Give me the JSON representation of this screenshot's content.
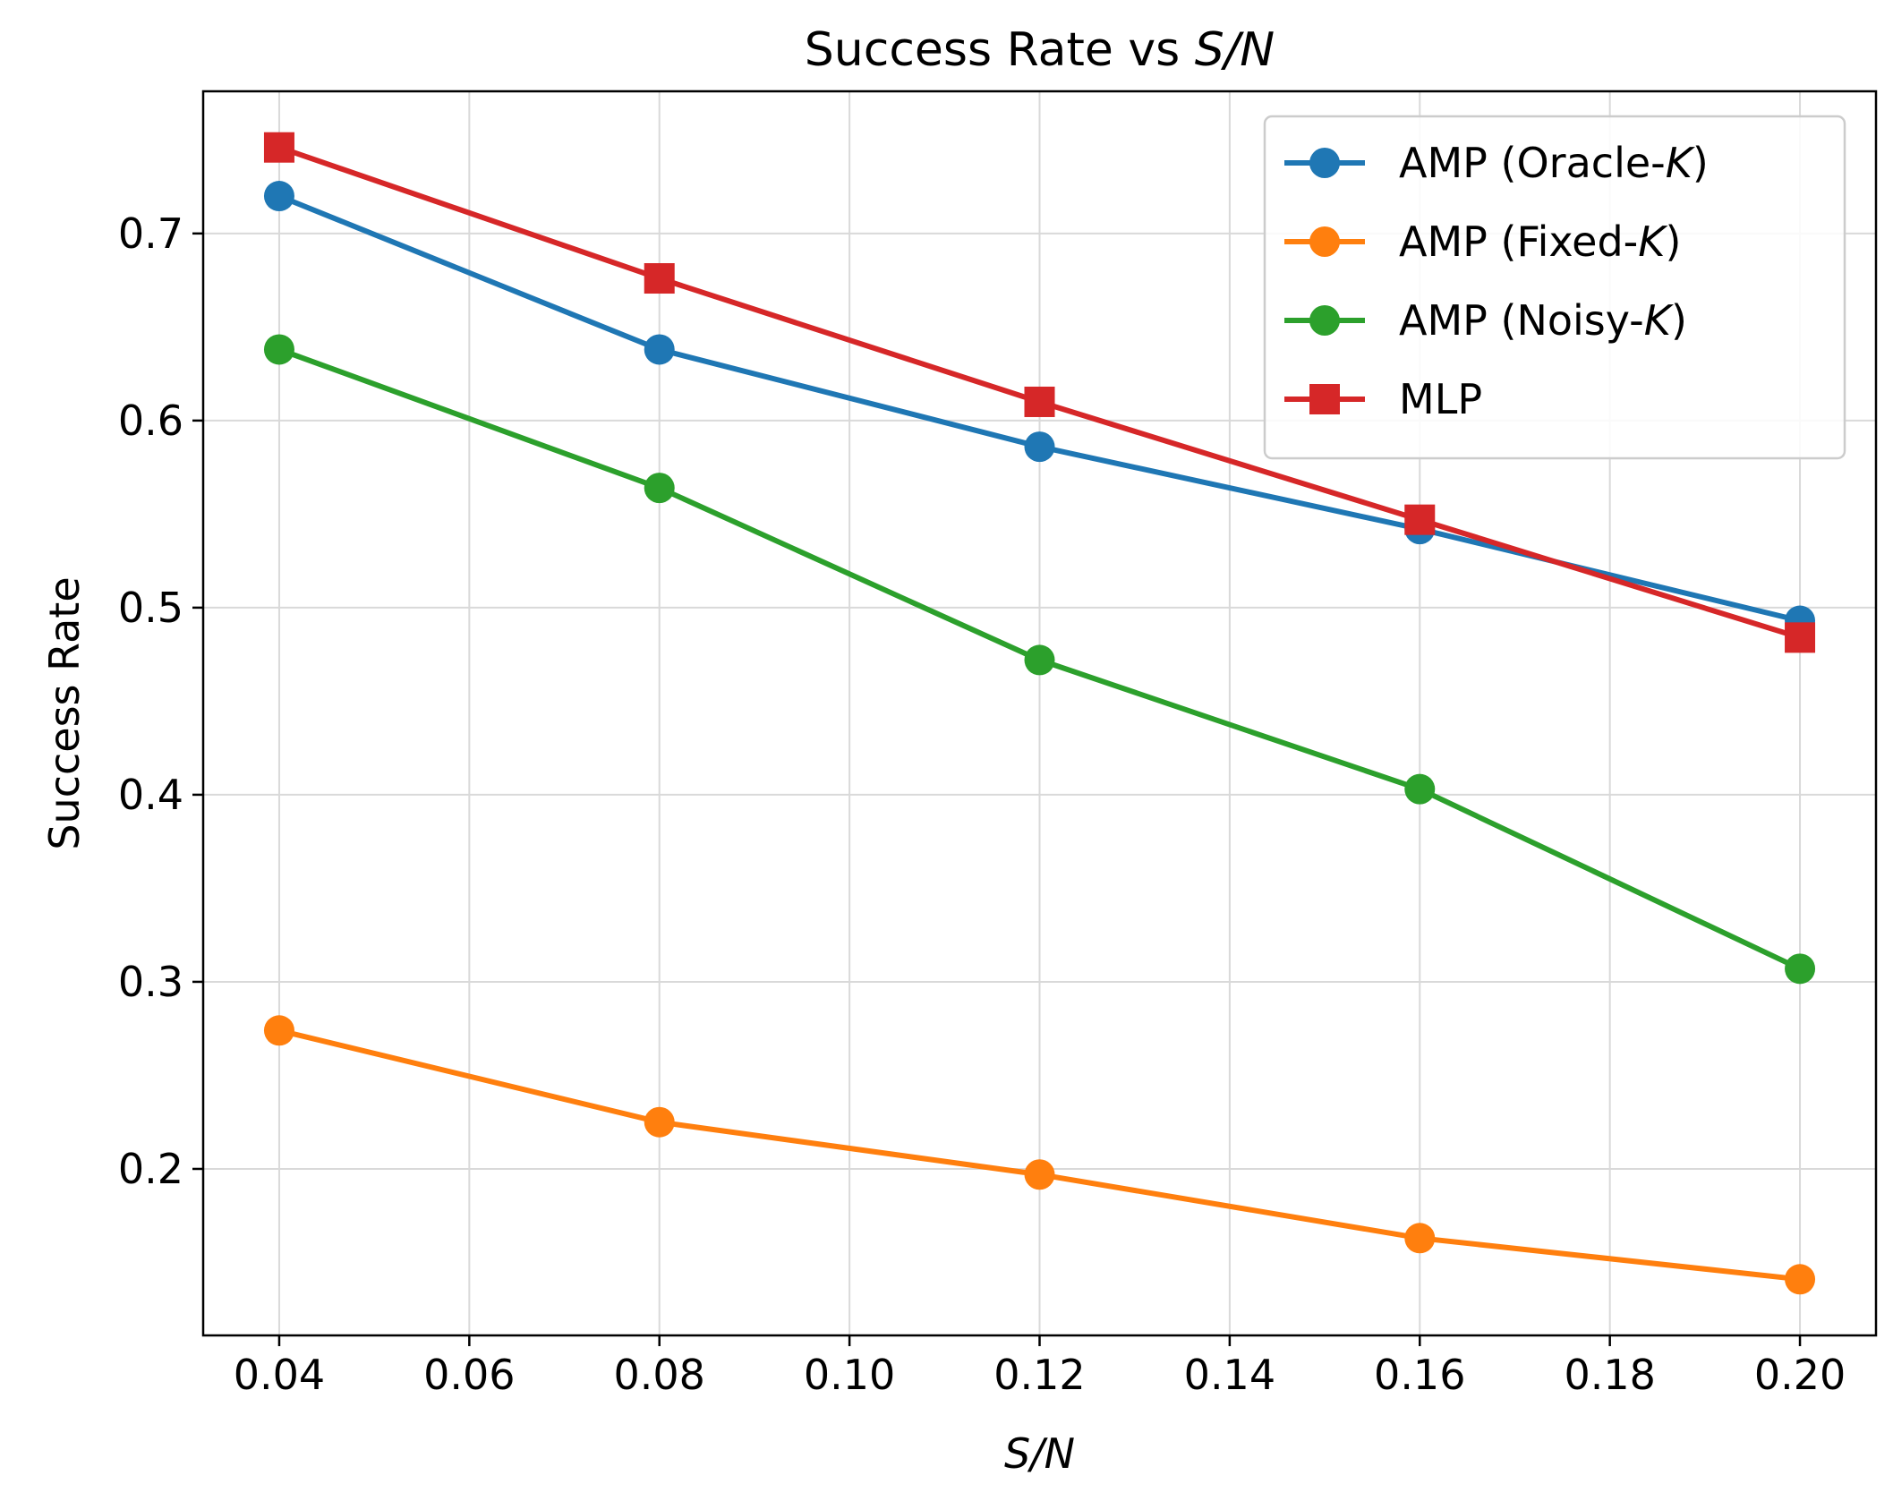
{
  "chart_data": {
    "type": "line",
    "title_prefix": "Success Rate vs ",
    "title_math": "S/N",
    "xlabel": "S/N",
    "ylabel": "Success Rate",
    "x": [
      0.04,
      0.08,
      0.12,
      0.16,
      0.2
    ],
    "xlim": [
      0.032,
      0.208
    ],
    "ylim": [
      0.111,
      0.776
    ],
    "xticks": [
      0.04,
      0.06,
      0.08,
      0.1,
      0.12,
      0.14,
      0.16,
      0.18,
      0.2
    ],
    "xtick_labels": [
      "0.04",
      "0.06",
      "0.08",
      "0.10",
      "0.12",
      "0.14",
      "0.16",
      "0.18",
      "0.20"
    ],
    "yticks": [
      0.2,
      0.3,
      0.4,
      0.5,
      0.6,
      0.7
    ],
    "ytick_labels": [
      "0.2",
      "0.3",
      "0.4",
      "0.5",
      "0.6",
      "0.7"
    ],
    "grid": true,
    "legend_position": "top-right",
    "series": [
      {
        "name": "AMP (Oracle-K)",
        "label_prefix": "AMP (Oracle-",
        "label_math": "K",
        "label_suffix": ")",
        "color": "#1f77b4",
        "marker": "circle",
        "values": [
          0.72,
          0.638,
          0.586,
          0.542,
          0.493
        ]
      },
      {
        "name": "AMP (Fixed-K)",
        "label_prefix": "AMP (Fixed-",
        "label_math": "K",
        "label_suffix": ")",
        "color": "#ff7f0e",
        "marker": "circle",
        "values": [
          0.274,
          0.225,
          0.197,
          0.163,
          0.141
        ]
      },
      {
        "name": "AMP (Noisy-K)",
        "label_prefix": "AMP (Noisy-",
        "label_math": "K",
        "label_suffix": ")",
        "color": "#2ca02c",
        "marker": "circle",
        "values": [
          0.638,
          0.564,
          0.472,
          0.403,
          0.307
        ]
      },
      {
        "name": "MLP",
        "label_prefix": "MLP",
        "label_math": "",
        "label_suffix": "",
        "color": "#d62728",
        "marker": "square",
        "values": [
          0.746,
          0.676,
          0.61,
          0.547,
          0.484
        ]
      }
    ]
  }
}
